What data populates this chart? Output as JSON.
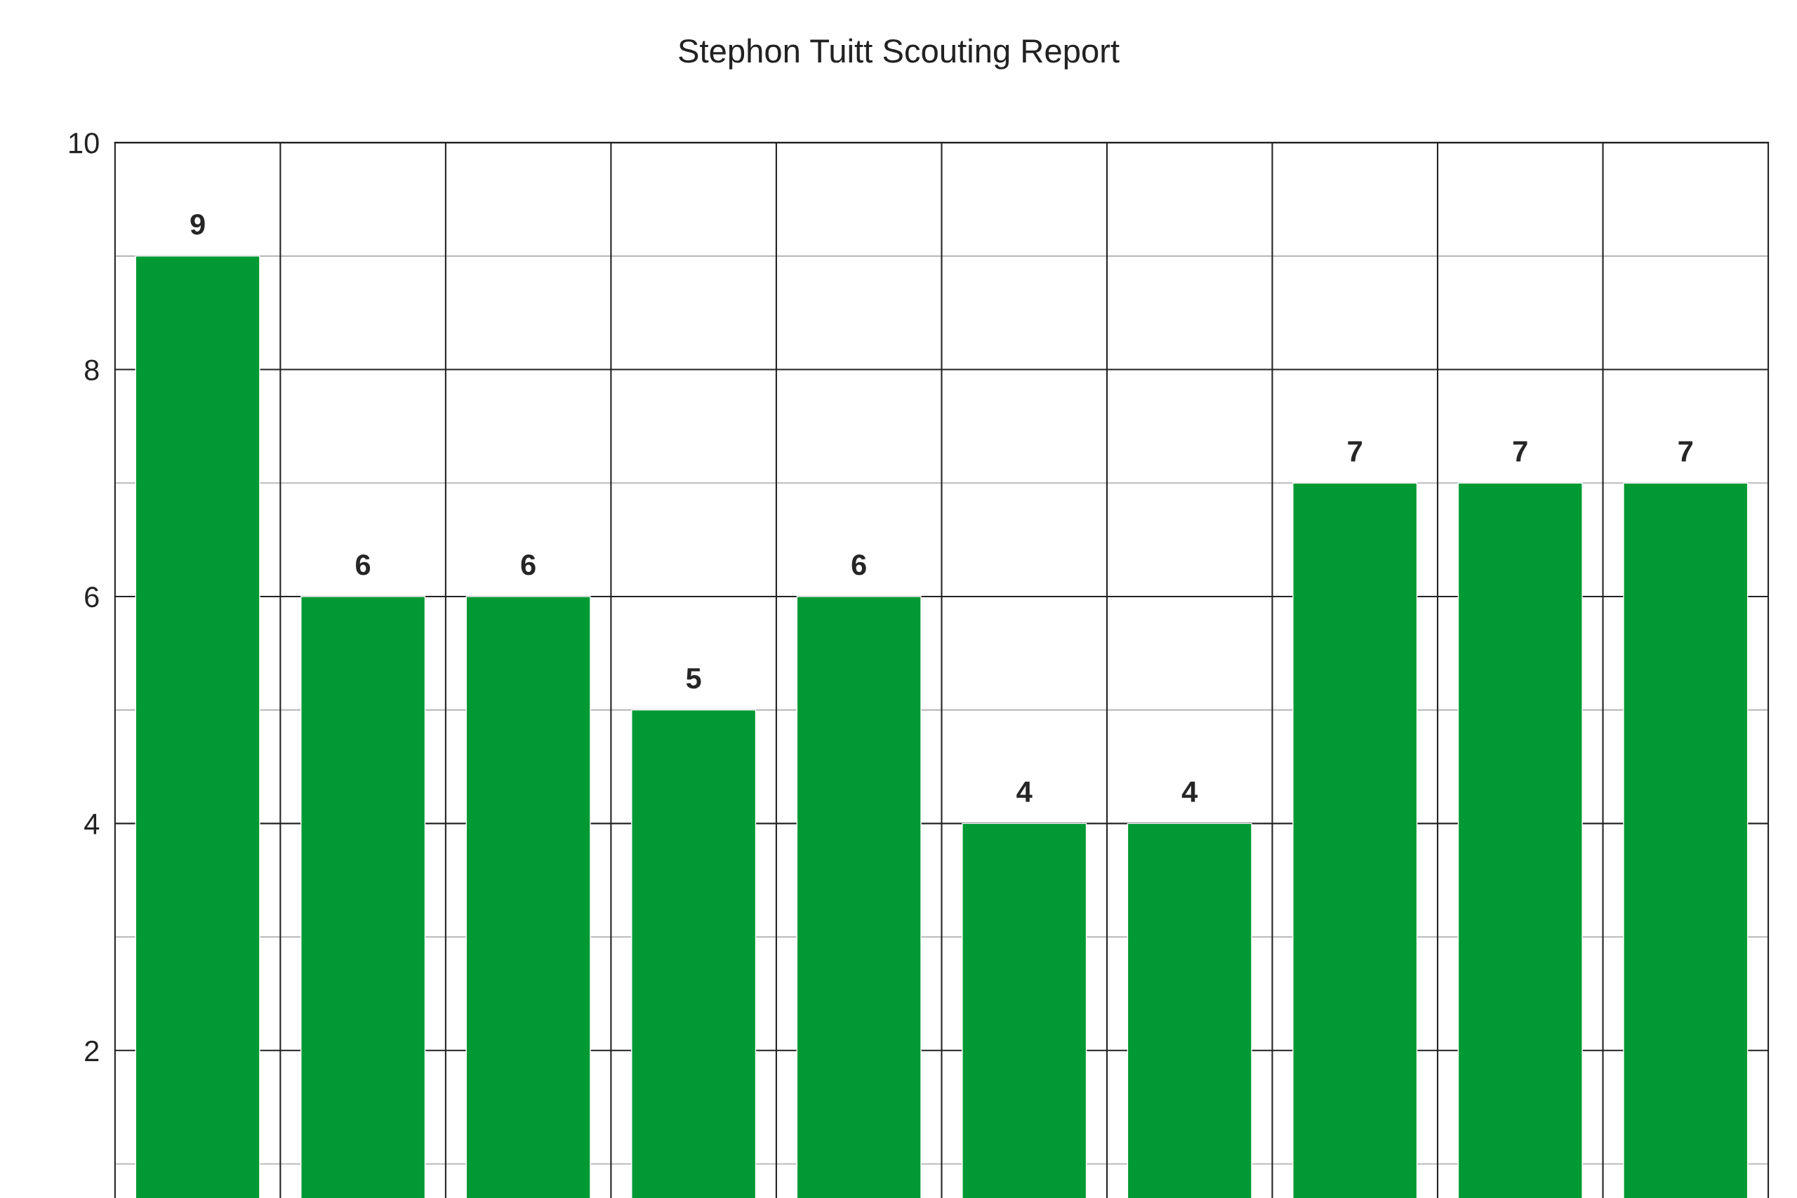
{
  "chart_data": {
    "type": "bar",
    "title": "Stephon Tuitt Scouting Report",
    "categories": [
      null,
      null,
      null,
      null,
      null,
      null,
      null,
      null,
      null,
      null
    ],
    "values": [
      9,
      6,
      6,
      5,
      6,
      4,
      4,
      7,
      7,
      7
    ],
    "color": "#009933",
    "ylim": [
      0.7,
      10
    ],
    "yticks": [
      {
        "value": 1,
        "label": null
      },
      2,
      {
        "value": 3,
        "label": null
      },
      4,
      {
        "value": 5,
        "label": null
      },
      6,
      {
        "value": 7,
        "label": null
      },
      8,
      {
        "value": 9,
        "label": null
      },
      10
    ],
    "grid": true,
    "data_labels": true,
    "tick_labels": "y"
  }
}
